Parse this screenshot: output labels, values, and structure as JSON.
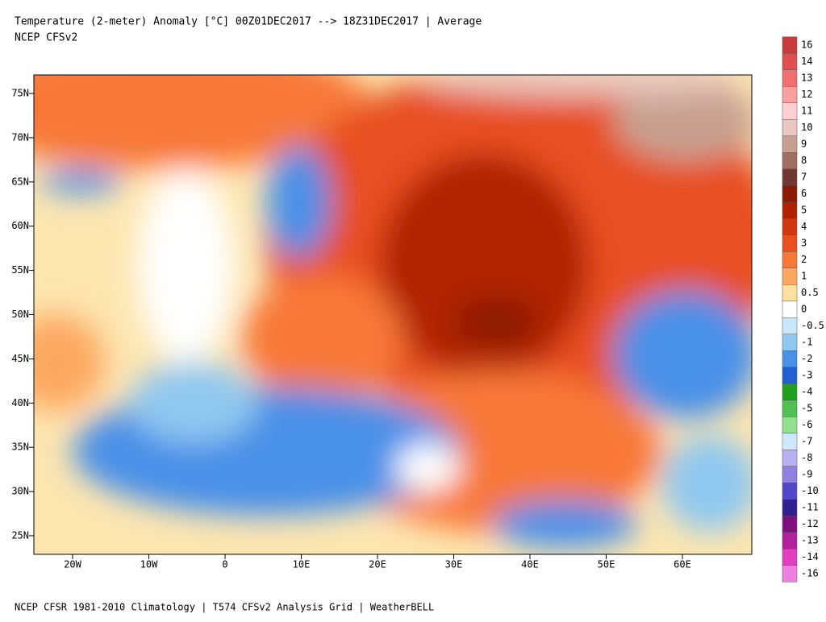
{
  "header": {
    "title": "Temperature (2-meter) Anomaly  [°C] 00Z01DEC2017 --> 18Z31DEC2017 | Average",
    "subtitle": "NCEP CFSv2"
  },
  "map": {
    "lat_labels": [
      "75N",
      "70N",
      "65N",
      "60N",
      "55N",
      "50N",
      "45N",
      "40N",
      "35N",
      "30N",
      "25N"
    ],
    "lon_labels": [
      "20W",
      "10W",
      "0",
      "10E",
      "20E",
      "30E",
      "40E",
      "50E",
      "60E"
    ]
  },
  "colorbar": {
    "values": [
      16,
      14,
      13,
      12,
      11,
      10,
      9,
      8,
      7,
      6,
      5,
      4,
      3,
      2,
      1,
      0.5,
      0,
      -0.5,
      -1,
      -2,
      -3,
      -4,
      -5,
      -6,
      -7,
      -8,
      -9,
      -10,
      -11,
      -12,
      -13,
      -14,
      -16
    ],
    "colors": [
      "#c83c3c",
      "#e05050",
      "#f07070",
      "#f8a0a0",
      "#fcd0d0",
      "#e8c8c0",
      "#c8a090",
      "#a07060",
      "#703830",
      "#8b1a00",
      "#b02000",
      "#d03810",
      "#e85020",
      "#f87838",
      "#fca860",
      "#fde0a0",
      "#ffffff",
      "#c8e8f8",
      "#90c8f0",
      "#4890e8",
      "#2060d0",
      "#20a020",
      "#50c050",
      "#90e090",
      "#d0e8ff",
      "#b8b0f0",
      "#9080e0",
      "#5048c8",
      "#302090",
      "#801080",
      "#b020a0",
      "#e040c0",
      "#f080e0"
    ]
  },
  "footer": "NCEP CFSR 1981-2010 Climatology | T574 CFSv2 Analysis Grid | WeatherBELL"
}
